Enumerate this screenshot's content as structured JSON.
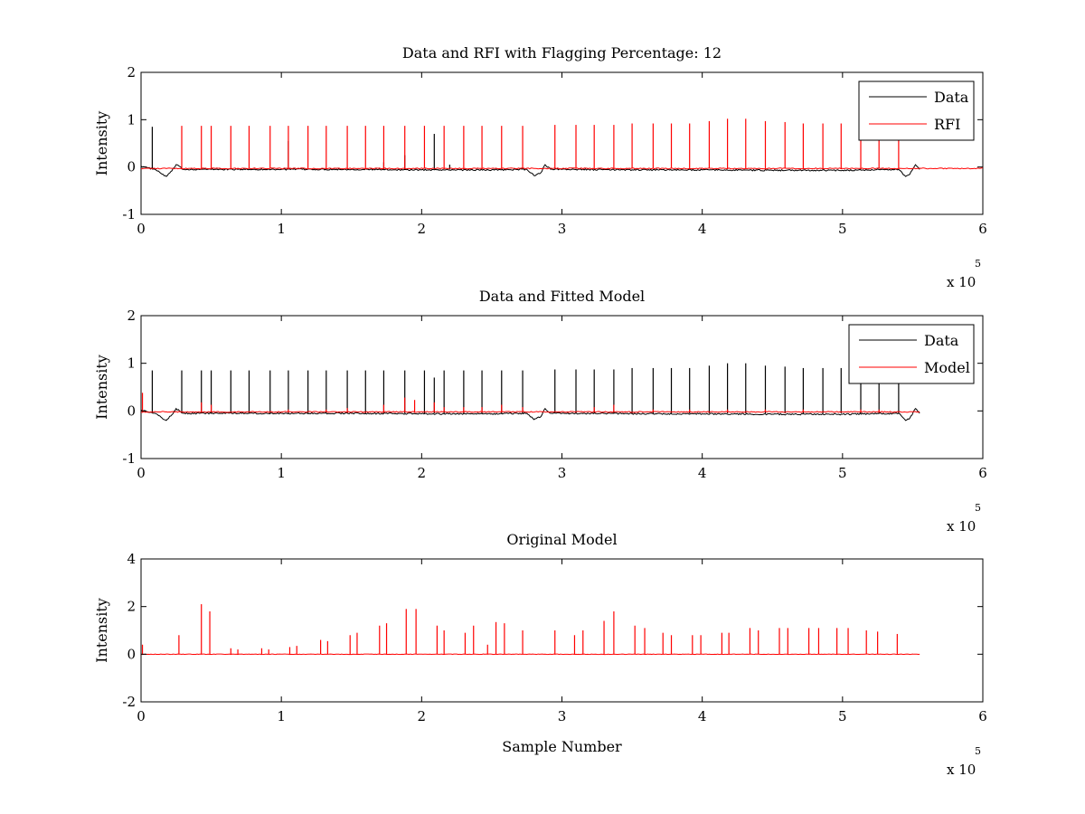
{
  "figure": {
    "background": "#ffffff"
  },
  "chart_data": [
    {
      "type": "line",
      "title": "Data and RFI with Flagging Percentage: 12",
      "xlabel": "",
      "ylabel": "Intensity",
      "xlim": [
        0,
        6
      ],
      "ylim": [
        -1,
        2
      ],
      "x_ticks": [
        "0",
        "1",
        "2",
        "3",
        "4",
        "5",
        "6"
      ],
      "y_ticks": [
        "-1",
        "0",
        "1",
        "2"
      ],
      "x_multiplier": {
        "base": "x 10",
        "exponent": "5"
      },
      "legend": {
        "position": "top-right",
        "entries": [
          {
            "name": "Data",
            "color": "#000000"
          },
          {
            "name": "RFI",
            "color": "#ff0000"
          }
        ]
      },
      "series": [
        {
          "name": "Data",
          "color": "#000000",
          "x": [
            0.0,
            0.05,
            0.1,
            0.15,
            0.18,
            0.22,
            0.25,
            0.3,
            0.5,
            1.0,
            1.5,
            2.0,
            2.5,
            2.75,
            2.8,
            2.85,
            2.88,
            2.92,
            3.0,
            3.5,
            4.0,
            4.5,
            5.0,
            5.4,
            5.45,
            5.48,
            5.52,
            5.55
          ],
          "y": [
            0.02,
            -0.02,
            -0.05,
            -0.15,
            -0.2,
            -0.08,
            0.05,
            -0.05,
            -0.05,
            -0.05,
            -0.05,
            -0.06,
            -0.06,
            -0.05,
            -0.18,
            -0.12,
            0.05,
            -0.05,
            -0.05,
            -0.06,
            -0.06,
            -0.07,
            -0.07,
            -0.05,
            -0.2,
            -0.15,
            0.05,
            -0.05
          ],
          "spikes": [
            [
              0.08,
              0.9
            ],
            [
              1.88,
              0.3
            ],
            [
              2.09,
              0.75
            ],
            [
              1.05,
              0.6
            ],
            [
              1.73,
              0.15
            ],
            [
              2.2,
              0.1
            ]
          ]
        },
        {
          "name": "RFI",
          "color": "#ff0000",
          "baseline": -0.03,
          "spikes": [
            [
              0.29,
              0.9
            ],
            [
              0.43,
              0.9
            ],
            [
              0.5,
              0.9
            ],
            [
              0.64,
              0.9
            ],
            [
              0.77,
              0.9
            ],
            [
              0.92,
              0.9
            ],
            [
              1.05,
              0.9
            ],
            [
              1.19,
              0.9
            ],
            [
              1.32,
              0.9
            ],
            [
              1.47,
              0.9
            ],
            [
              1.6,
              0.9
            ],
            [
              1.73,
              0.9
            ],
            [
              1.88,
              0.9
            ],
            [
              2.02,
              0.9
            ],
            [
              2.16,
              0.9
            ],
            [
              2.3,
              0.9
            ],
            [
              2.43,
              0.9
            ],
            [
              2.57,
              0.9
            ],
            [
              2.72,
              0.9
            ],
            [
              2.95,
              0.92
            ],
            [
              3.1,
              0.92
            ],
            [
              3.23,
              0.92
            ],
            [
              3.37,
              0.92
            ],
            [
              3.5,
              0.95
            ],
            [
              3.65,
              0.95
            ],
            [
              3.78,
              0.95
            ],
            [
              3.91,
              0.95
            ],
            [
              4.05,
              1.0
            ],
            [
              4.18,
              1.05
            ],
            [
              4.31,
              1.05
            ],
            [
              4.45,
              1.0
            ],
            [
              4.59,
              0.98
            ],
            [
              4.72,
              0.95
            ],
            [
              4.86,
              0.95
            ],
            [
              4.99,
              0.95
            ],
            [
              5.13,
              0.95
            ],
            [
              5.26,
              0.95
            ],
            [
              5.4,
              0.95
            ]
          ]
        }
      ]
    },
    {
      "type": "line",
      "title": "Data and Fitted Model",
      "xlabel": "",
      "ylabel": "Intensity",
      "xlim": [
        0,
        6
      ],
      "ylim": [
        -1,
        2
      ],
      "x_ticks": [
        "0",
        "1",
        "2",
        "3",
        "4",
        "5",
        "6"
      ],
      "y_ticks": [
        "-1",
        "0",
        "1",
        "2"
      ],
      "x_multiplier": {
        "base": "x 10",
        "exponent": "5"
      },
      "legend": {
        "position": "top-right",
        "entries": [
          {
            "name": "Data",
            "color": "#000000"
          },
          {
            "name": "Model",
            "color": "#ff0000"
          }
        ]
      },
      "series": [
        {
          "name": "Data",
          "color": "#000000",
          "x": [
            0.0,
            0.05,
            0.1,
            0.15,
            0.18,
            0.22,
            0.25,
            0.3,
            0.5,
            1.0,
            1.5,
            2.0,
            2.5,
            2.75,
            2.8,
            2.85,
            2.88,
            2.92,
            3.0,
            3.5,
            4.0,
            4.5,
            5.0,
            5.4,
            5.45,
            5.48,
            5.52,
            5.55
          ],
          "y": [
            0.02,
            -0.02,
            -0.05,
            -0.15,
            -0.2,
            -0.08,
            0.05,
            -0.05,
            -0.05,
            -0.05,
            -0.05,
            -0.06,
            -0.06,
            -0.05,
            -0.18,
            -0.12,
            0.05,
            -0.05,
            -0.05,
            -0.06,
            -0.06,
            -0.07,
            -0.07,
            -0.05,
            -0.2,
            -0.15,
            0.05,
            -0.05
          ],
          "spikes": [
            [
              0.08,
              0.9
            ],
            [
              0.29,
              0.9
            ],
            [
              0.43,
              0.9
            ],
            [
              0.5,
              0.9
            ],
            [
              0.64,
              0.9
            ],
            [
              0.77,
              0.9
            ],
            [
              0.92,
              0.9
            ],
            [
              1.05,
              0.9
            ],
            [
              1.19,
              0.9
            ],
            [
              1.32,
              0.9
            ],
            [
              1.47,
              0.9
            ],
            [
              1.6,
              0.9
            ],
            [
              1.73,
              0.9
            ],
            [
              1.88,
              0.9
            ],
            [
              2.02,
              0.9
            ],
            [
              2.09,
              0.75
            ],
            [
              2.16,
              0.9
            ],
            [
              2.3,
              0.9
            ],
            [
              2.43,
              0.9
            ],
            [
              2.57,
              0.9
            ],
            [
              2.72,
              0.9
            ],
            [
              2.95,
              0.92
            ],
            [
              3.1,
              0.92
            ],
            [
              3.23,
              0.92
            ],
            [
              3.37,
              0.92
            ],
            [
              3.5,
              0.95
            ],
            [
              3.65,
              0.95
            ],
            [
              3.78,
              0.95
            ],
            [
              3.91,
              0.95
            ],
            [
              4.05,
              1.0
            ],
            [
              4.18,
              1.05
            ],
            [
              4.31,
              1.05
            ],
            [
              4.45,
              1.0
            ],
            [
              4.59,
              0.98
            ],
            [
              4.72,
              0.95
            ],
            [
              4.86,
              0.95
            ],
            [
              4.99,
              0.95
            ],
            [
              5.13,
              0.95
            ],
            [
              5.26,
              0.95
            ],
            [
              5.4,
              0.95
            ]
          ]
        },
        {
          "name": "Model",
          "color": "#ff0000",
          "baseline": -0.02,
          "x_end": 5.55,
          "spikes": [
            [
              0.01,
              0.4
            ],
            [
              0.43,
              0.2
            ],
            [
              0.5,
              0.15
            ],
            [
              1.05,
              0.05
            ],
            [
              1.32,
              0.05
            ],
            [
              1.47,
              0.08
            ],
            [
              1.73,
              0.15
            ],
            [
              1.88,
              0.3
            ],
            [
              1.95,
              0.25
            ],
            [
              2.09,
              0.2
            ],
            [
              2.16,
              0.1
            ],
            [
              2.3,
              0.1
            ],
            [
              2.43,
              0.1
            ],
            [
              2.57,
              0.15
            ],
            [
              2.72,
              0.1
            ],
            [
              3.23,
              0.1
            ],
            [
              3.37,
              0.15
            ],
            [
              3.65,
              0.05
            ],
            [
              3.91,
              0.05
            ],
            [
              4.18,
              0.05
            ],
            [
              4.45,
              0.05
            ],
            [
              4.72,
              0.05
            ],
            [
              5.13,
              0.05
            ],
            [
              5.26,
              0.05
            ]
          ]
        }
      ]
    },
    {
      "type": "line",
      "title": "Original Model",
      "xlabel": "Sample Number",
      "ylabel": "Intensity",
      "xlim": [
        0,
        6
      ],
      "ylim": [
        -2,
        4
      ],
      "x_ticks": [
        "0",
        "1",
        "2",
        "3",
        "4",
        "5",
        "6"
      ],
      "y_ticks": [
        "-2",
        "0",
        "2",
        "4"
      ],
      "x_multiplier": {
        "base": "x 10",
        "exponent": "5"
      },
      "series": [
        {
          "name": "",
          "color": "#ff0000",
          "baseline": 0.0,
          "x_end": 5.55,
          "spikes": [
            [
              0.01,
              0.4
            ],
            [
              0.27,
              0.8
            ],
            [
              0.43,
              2.1
            ],
            [
              0.49,
              1.8
            ],
            [
              0.64,
              0.25
            ],
            [
              0.69,
              0.2
            ],
            [
              0.86,
              0.25
            ],
            [
              0.91,
              0.2
            ],
            [
              1.06,
              0.3
            ],
            [
              1.11,
              0.35
            ],
            [
              1.28,
              0.6
            ],
            [
              1.33,
              0.55
            ],
            [
              1.49,
              0.8
            ],
            [
              1.54,
              0.9
            ],
            [
              1.7,
              1.2
            ],
            [
              1.75,
              1.3
            ],
            [
              1.89,
              1.9
            ],
            [
              1.96,
              1.9
            ],
            [
              2.11,
              1.2
            ],
            [
              2.16,
              1.0
            ],
            [
              2.31,
              0.9
            ],
            [
              2.37,
              1.2
            ],
            [
              2.47,
              0.4
            ],
            [
              2.53,
              1.35
            ],
            [
              2.59,
              1.3
            ],
            [
              2.72,
              1.0
            ],
            [
              2.95,
              1.0
            ],
            [
              3.09,
              0.8
            ],
            [
              3.15,
              1.0
            ],
            [
              3.3,
              1.4
            ],
            [
              3.37,
              1.8
            ],
            [
              3.52,
              1.2
            ],
            [
              3.59,
              1.1
            ],
            [
              3.72,
              0.9
            ],
            [
              3.78,
              0.8
            ],
            [
              3.93,
              0.8
            ],
            [
              3.99,
              0.8
            ],
            [
              4.14,
              0.9
            ],
            [
              4.19,
              0.9
            ],
            [
              4.34,
              1.1
            ],
            [
              4.4,
              1.0
            ],
            [
              4.55,
              1.1
            ],
            [
              4.61,
              1.1
            ],
            [
              4.76,
              1.1
            ],
            [
              4.83,
              1.1
            ],
            [
              4.96,
              1.1
            ],
            [
              5.04,
              1.1
            ],
            [
              5.17,
              1.0
            ],
            [
              5.25,
              0.95
            ],
            [
              5.39,
              0.85
            ]
          ]
        }
      ]
    }
  ]
}
